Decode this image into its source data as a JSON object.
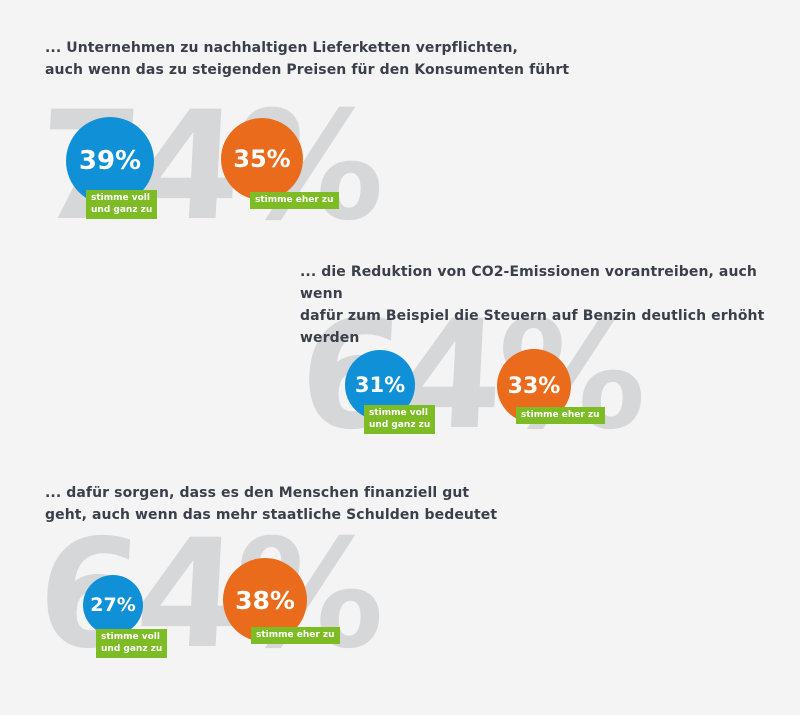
{
  "sections": [
    {
      "heading_line1": "... Unternehmen zu nachhaltigen Lieferketten verpflichten,",
      "heading_line2": "auch wenn das zu steigenden Preisen für den Konsumenten führt",
      "total": "74%",
      "full_value": "39%",
      "full_label_line1": "stimme voll",
      "full_label_line2": "und ganz zu",
      "partial_value": "35%",
      "partial_label": "stimme eher zu"
    },
    {
      "heading_line1": "... die Reduktion von CO2-Emissionen vorantreiben, auch wenn",
      "heading_line2": "dafür zum Beispiel die Steuern auf Benzin deutlich erhöht werden",
      "total": "64%",
      "full_value": "31%",
      "full_label_line1": "stimme voll",
      "full_label_line2": "und ganz zu",
      "partial_value": "33%",
      "partial_label": "stimme eher zu"
    },
    {
      "heading_line1": "... dafür sorgen, dass es den Menschen finanziell gut",
      "heading_line2": "geht, auch wenn das mehr staatliche Schulden bedeutet",
      "total": "64%",
      "full_value": "27%",
      "full_label_line1": "stimme voll",
      "full_label_line2": "und ganz zu",
      "partial_value": "38%",
      "partial_label": "stimme eher zu"
    }
  ],
  "colors": {
    "full_agree": "#1090d6",
    "partial_agree": "#ea6b1c",
    "label_tag": "#7dbc25",
    "total_number": "#d6d7d9",
    "heading_text": "#3a3f4a"
  }
}
